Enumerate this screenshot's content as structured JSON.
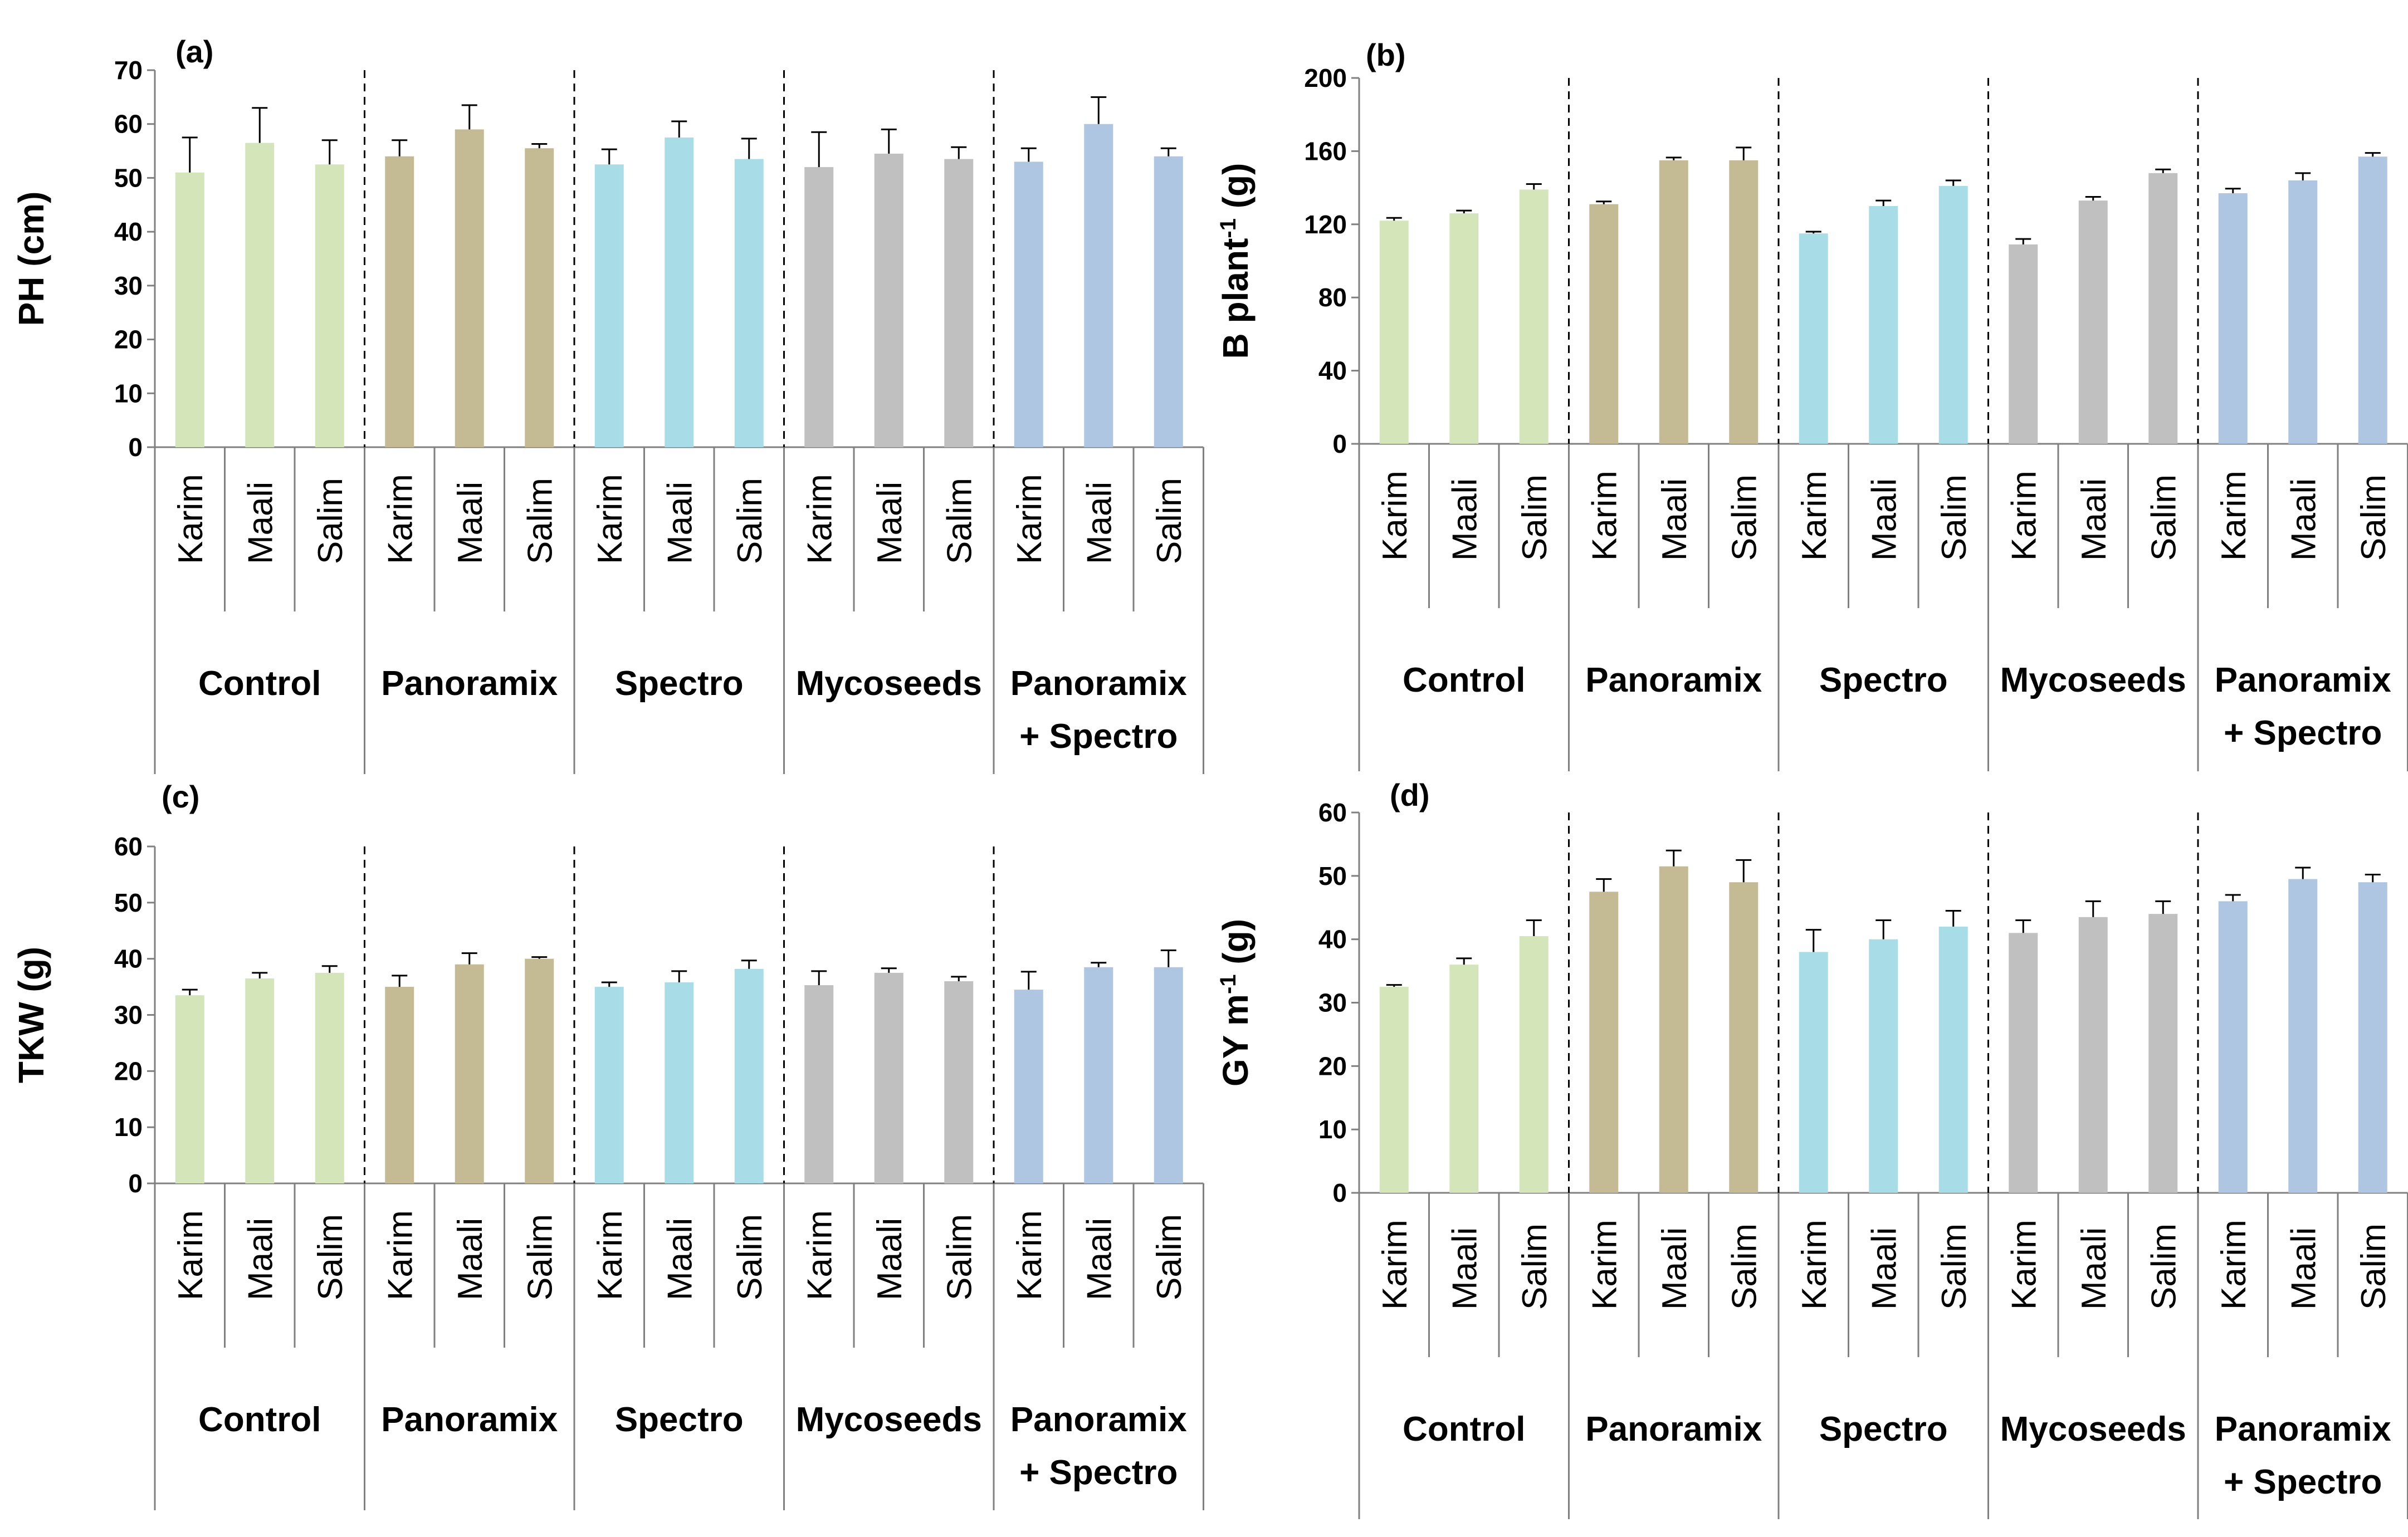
{
  "chart_data": [
    {
      "type": "bar",
      "panel": "(a)",
      "ylabel": "PH (cm)",
      "ylabel_sup": "",
      "ylabel_tail": "",
      "ylim": [
        0,
        70
      ],
      "yticks": [
        "0",
        "10",
        "20",
        "30",
        "40",
        "50",
        "60",
        "70"
      ],
      "cultivars": [
        "Karim",
        "Maali",
        "Salim"
      ],
      "groups": [
        {
          "name": [
            "Control"
          ],
          "color": "#d3e5b9",
          "values": [
            51,
            56.5,
            52.5
          ],
          "errors": [
            6.5,
            6.5,
            4.5
          ]
        },
        {
          "name": [
            "Panoramix"
          ],
          "color": "#c4ba93",
          "values": [
            54,
            59,
            55.5
          ],
          "errors": [
            3,
            4.5,
            0.8
          ]
        },
        {
          "name": [
            "Spectro"
          ],
          "color": "#a8dde8",
          "values": [
            52.5,
            57.5,
            53.5
          ],
          "errors": [
            2.8,
            3,
            3.8
          ]
        },
        {
          "name": [
            "Mycoseeds"
          ],
          "color": "#c0c0c0",
          "values": [
            52,
            54.5,
            53.5
          ],
          "errors": [
            6.5,
            4.5,
            2.2
          ]
        },
        {
          "name": [
            "Panoramix",
            "+ Spectro"
          ],
          "color": "#aec6e2",
          "values": [
            53,
            60,
            54
          ],
          "errors": [
            2.5,
            5,
            1.5
          ]
        }
      ]
    },
    {
      "type": "bar",
      "panel": "(b)",
      "ylabel": "B plant",
      "ylabel_sup": "-1",
      "ylabel_tail": " (g)",
      "ylim": [
        0,
        200
      ],
      "yticks": [
        "0",
        "40",
        "80",
        "120",
        "160",
        "200"
      ],
      "cultivars": [
        "Karim",
        "Maali",
        "Salim"
      ],
      "groups": [
        {
          "name": [
            "Control"
          ],
          "color": "#d3e5b9",
          "values": [
            122,
            126,
            139
          ],
          "errors": [
            1.5,
            1.5,
            3
          ]
        },
        {
          "name": [
            "Panoramix"
          ],
          "color": "#c4ba93",
          "values": [
            131,
            155,
            155
          ],
          "errors": [
            1.5,
            1.5,
            7
          ]
        },
        {
          "name": [
            "Spectro"
          ],
          "color": "#a8dde8",
          "values": [
            115,
            130,
            141
          ],
          "errors": [
            1,
            3,
            3
          ]
        },
        {
          "name": [
            "Mycoseeds"
          ],
          "color": "#c0c0c0",
          "values": [
            109,
            133,
            148
          ],
          "errors": [
            3,
            2,
            2
          ]
        },
        {
          "name": [
            "Panoramix",
            "+ Spectro"
          ],
          "color": "#aec6e2",
          "values": [
            137,
            144,
            157
          ],
          "errors": [
            2.5,
            4,
            2
          ]
        }
      ]
    },
    {
      "type": "bar",
      "panel": "(c)",
      "ylabel": "TKW (g)",
      "ylabel_sup": "",
      "ylabel_tail": "",
      "ylim": [
        0,
        60
      ],
      "yticks": [
        "0",
        "10",
        "20",
        "30",
        "40",
        "50",
        "60"
      ],
      "cultivars": [
        "Karim",
        "Maali",
        "Salim"
      ],
      "groups": [
        {
          "name": [
            "Control"
          ],
          "color": "#d3e5b9",
          "values": [
            33.5,
            36.5,
            37.5
          ],
          "errors": [
            1,
            1,
            1.2
          ]
        },
        {
          "name": [
            "Panoramix"
          ],
          "color": "#c4ba93",
          "values": [
            35,
            39,
            40
          ],
          "errors": [
            2,
            2,
            0.3
          ]
        },
        {
          "name": [
            "Spectro"
          ],
          "color": "#a8dde8",
          "values": [
            35,
            35.8,
            38.2
          ],
          "errors": [
            0.8,
            2,
            1.5
          ]
        },
        {
          "name": [
            "Mycoseeds"
          ],
          "color": "#c0c0c0",
          "values": [
            35.3,
            37.5,
            36
          ],
          "errors": [
            2.5,
            0.8,
            0.8
          ]
        },
        {
          "name": [
            "Panoramix",
            "+ Spectro"
          ],
          "color": "#aec6e2",
          "values": [
            34.5,
            38.5,
            38.5
          ],
          "errors": [
            3.2,
            0.8,
            3
          ]
        }
      ]
    },
    {
      "type": "bar",
      "panel": "(d)",
      "ylabel": "GY m",
      "ylabel_sup": "-1",
      "ylabel_tail": " (g)",
      "ylim": [
        0,
        60
      ],
      "yticks": [
        "0",
        "10",
        "20",
        "30",
        "40",
        "50",
        "60"
      ],
      "cultivars": [
        "Karim",
        "Maali",
        "Salim"
      ],
      "groups": [
        {
          "name": [
            "Control"
          ],
          "color": "#d3e5b9",
          "values": [
            32.5,
            36,
            40.5
          ],
          "errors": [
            0.3,
            1,
            2.5
          ]
        },
        {
          "name": [
            "Panoramix"
          ],
          "color": "#c4ba93",
          "values": [
            47.5,
            51.5,
            49
          ],
          "errors": [
            2,
            2.5,
            3.5
          ]
        },
        {
          "name": [
            "Spectro"
          ],
          "color": "#a8dde8",
          "values": [
            38,
            40,
            42
          ],
          "errors": [
            3.5,
            3,
            2.5
          ]
        },
        {
          "name": [
            "Mycoseeds"
          ],
          "color": "#c0c0c0",
          "values": [
            41,
            43.5,
            44
          ],
          "errors": [
            2,
            2.5,
            2
          ]
        },
        {
          "name": [
            "Panoramix",
            "+ Spectro"
          ],
          "color": "#aec6e2",
          "values": [
            46,
            49.5,
            49
          ],
          "errors": [
            1,
            1.8,
            1.2
          ]
        }
      ]
    }
  ]
}
